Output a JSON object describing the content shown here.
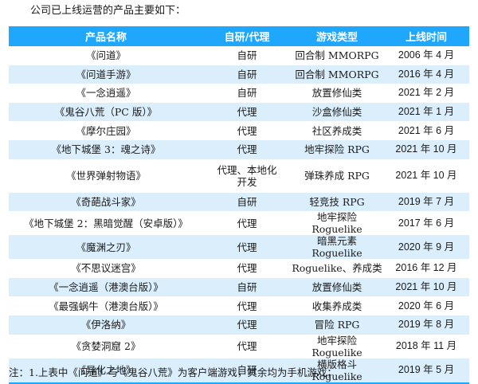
{
  "intro": "公司已上线运营的产品主要如下：",
  "table": {
    "headers": [
      "产品名称",
      "自研/代理",
      "游戏类型",
      "上线时间"
    ],
    "rows": [
      {
        "name": "《问道》",
        "source": "自研",
        "genre": "回合制 MMORPG",
        "launch": "2006 年 4 月"
      },
      {
        "name": "《问道手游》",
        "source": "自研",
        "genre": "回合制 MMORPG",
        "launch": "2016 年 4 月"
      },
      {
        "name": "《一念逍遥》",
        "source": "自研",
        "genre": "放置修仙类",
        "launch": "2021 年 2 月"
      },
      {
        "name": "《鬼谷八荒（PC 版）》",
        "source": "代理",
        "genre": "沙盒修仙类",
        "launch": "2021 年 1 月"
      },
      {
        "name": "《摩尔庄园》",
        "source": "代理",
        "genre": "社区养成类",
        "launch": "2021 年 6 月"
      },
      {
        "name": "《地下城堡 3：魂之诗》",
        "source": "代理",
        "genre": "地牢探险 RPG",
        "launch": "2021 年 10 月"
      },
      {
        "name": "《世界弹射物语》",
        "source": "代理、本地化开发",
        "genre": "弹珠养成 RPG",
        "launch": "2021 年 10 月"
      },
      {
        "name": "《奇葩战斗家》",
        "source": "自研",
        "genre": "轻竞技 RPG",
        "launch": "2019 年 7 月"
      },
      {
        "name": "《地下城堡 2：黑暗觉醒（安卓版）》",
        "source": "代理",
        "genre": "地牢探险 Roguelike",
        "launch": "2017 年 6 月"
      },
      {
        "name": "《魔渊之刃》",
        "source": "代理",
        "genre": "暗黑元素 Roguelike",
        "launch": "2020 年 9 月"
      },
      {
        "name": "《不思议迷宫》",
        "source": "代理",
        "genre": "Roguelike、养成类",
        "launch": "2016 年 12 月"
      },
      {
        "name": "《一念逍遥（港澳台版）》",
        "source": "自研",
        "genre": "放置修仙类",
        "launch": "2021 年 10 月"
      },
      {
        "name": "《最强蜗牛（港澳台版）》",
        "source": "代理",
        "genre": "收集养成类",
        "launch": "2020 年 6 月"
      },
      {
        "name": "《伊洛纳》",
        "source": "代理",
        "genre": "冒险 RPG",
        "launch": "2019 年 8 月"
      },
      {
        "name": "《贪婪洞窟 2》",
        "source": "代理",
        "genre": "地牢探险 Roguelike",
        "launch": "2018 年 11 月"
      },
      {
        "name": "《异化之地》",
        "source": "自研",
        "genre": "横版格斗 Roguelike",
        "launch": "2019 年 5 月"
      }
    ]
  },
  "note": "注：1.上表中《问道》与《鬼谷八荒》为客户端游戏，其余均为手机游戏；",
  "colors": {
    "header_bg": "#1ea7fd",
    "header_text": "#ffffff",
    "stripe_bg": "#dbeefc",
    "row_bg": "#ffffff"
  }
}
